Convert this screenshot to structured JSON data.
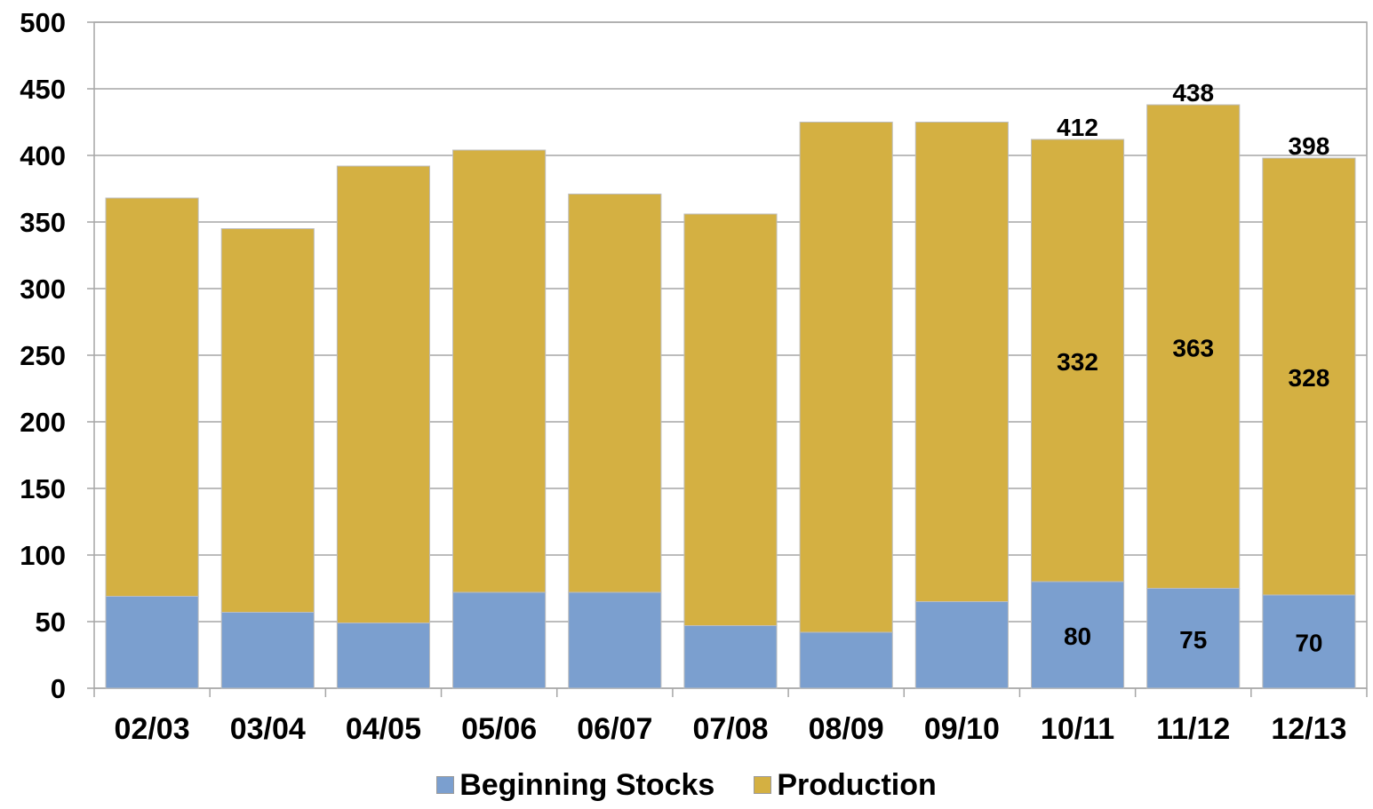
{
  "chart_data": {
    "type": "bar",
    "stacked": true,
    "title": "",
    "xlabel": "",
    "ylabel": "",
    "ylim": [
      0,
      500
    ],
    "yticks": [
      0,
      50,
      100,
      150,
      200,
      250,
      300,
      350,
      400,
      450,
      500
    ],
    "grid": true,
    "legend_position": "bottom",
    "categories": [
      "02/03",
      "03/04",
      "04/05",
      "05/06",
      "06/07",
      "07/08",
      "08/09",
      "09/10",
      "10/11",
      "11/12",
      "12/13"
    ],
    "series": [
      {
        "name": "Beginning Stocks",
        "color": "#7b9fcf",
        "values": [
          69,
          57,
          49,
          72,
          72,
          47,
          42,
          65,
          80,
          75,
          70
        ],
        "data_labels": [
          null,
          null,
          null,
          null,
          null,
          null,
          null,
          null,
          "80",
          "75",
          "70"
        ]
      },
      {
        "name": "Production",
        "color": "#d4b042",
        "values": [
          299,
          288,
          343,
          332,
          299,
          309,
          383,
          360,
          332,
          363,
          328
        ],
        "data_labels": [
          null,
          null,
          null,
          null,
          null,
          null,
          null,
          null,
          "332",
          "363",
          "328"
        ]
      }
    ],
    "totals": [
      368,
      345,
      392,
      404,
      371,
      356,
      425,
      425,
      412,
      438,
      398
    ],
    "total_labels": [
      null,
      null,
      null,
      null,
      null,
      null,
      null,
      null,
      "412",
      "438",
      "398"
    ]
  }
}
